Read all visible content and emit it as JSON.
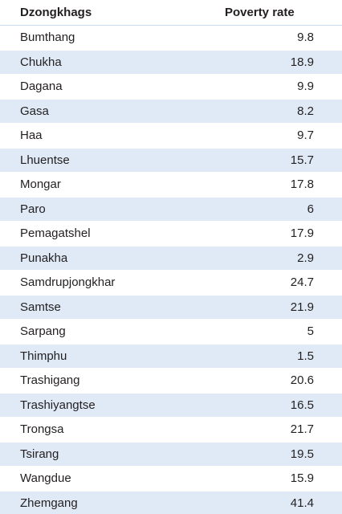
{
  "header": {
    "col_name": "Dzongkhags",
    "col_value": "Poverty rate"
  },
  "rows": [
    {
      "name": "Bumthang",
      "value": "9.8"
    },
    {
      "name": "Chukha",
      "value": "18.9"
    },
    {
      "name": "Dagana",
      "value": "9.9"
    },
    {
      "name": "Gasa",
      "value": "8.2"
    },
    {
      "name": "Haa",
      "value": "9.7"
    },
    {
      "name": "Lhuentse",
      "value": "15.7"
    },
    {
      "name": "Mongar",
      "value": "17.8"
    },
    {
      "name": "Paro",
      "value": "6"
    },
    {
      "name": "Pemagatshel",
      "value": "17.9"
    },
    {
      "name": "Punakha",
      "value": "2.9"
    },
    {
      "name": "Samdrupjongkhar",
      "value": "24.7"
    },
    {
      "name": "Samtse",
      "value": "21.9"
    },
    {
      "name": "Sarpang",
      "value": "5"
    },
    {
      "name": "Thimphu",
      "value": "1.5"
    },
    {
      "name": "Trashigang",
      "value": "20.6"
    },
    {
      "name": "Trashiyangtse",
      "value": "16.5"
    },
    {
      "name": "Trongsa",
      "value": "21.7"
    },
    {
      "name": "Tsirang",
      "value": "19.5"
    },
    {
      "name": "Wangdue",
      "value": "15.9"
    },
    {
      "name": "Zhemgang",
      "value": "41.4"
    }
  ],
  "colors": {
    "stripe": "#dfeaf6",
    "text": "#231f20"
  }
}
